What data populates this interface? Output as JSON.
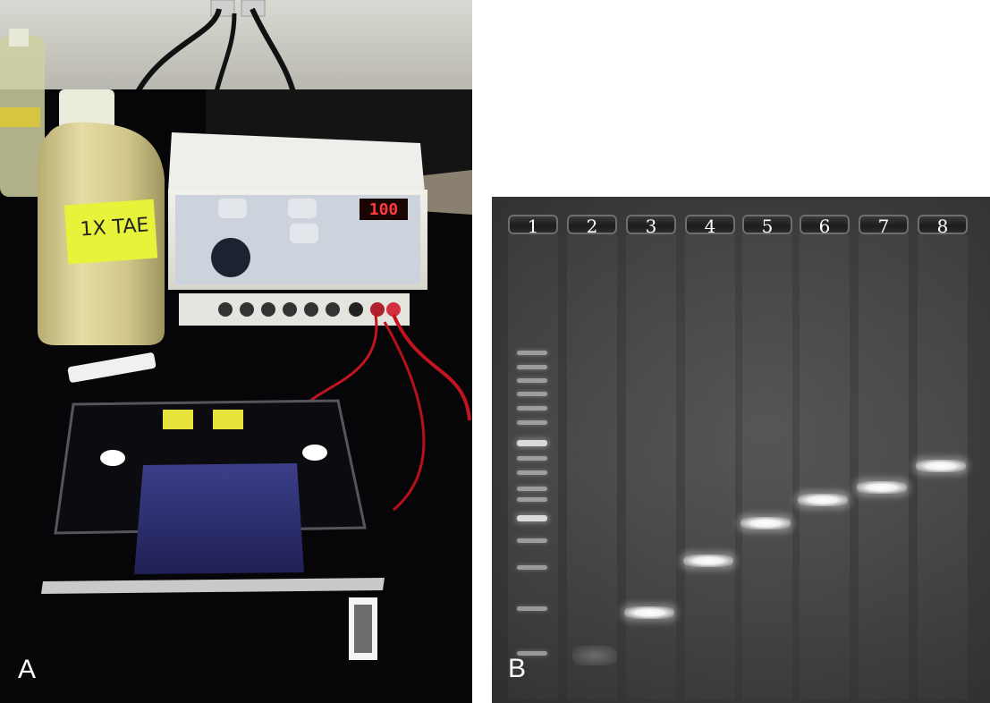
{
  "panels": {
    "a": {
      "letter": "A",
      "bottle_label": "1X TAE",
      "power_supply": {
        "display_value": "100"
      }
    },
    "b": {
      "letter": "B",
      "lanes": [
        "1",
        "2",
        "3",
        "4",
        "5",
        "6",
        "7",
        "8"
      ]
    }
  }
}
